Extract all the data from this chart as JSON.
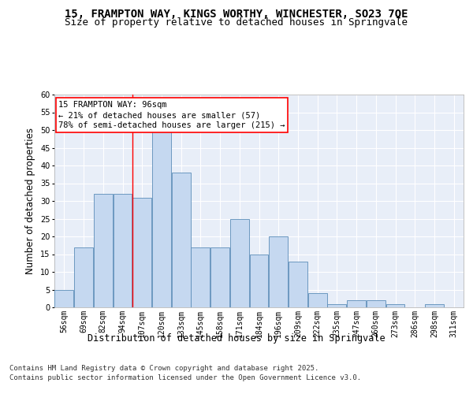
{
  "title_line1": "15, FRAMPTON WAY, KINGS WORTHY, WINCHESTER, SO23 7QE",
  "title_line2": "Size of property relative to detached houses in Springvale",
  "xlabel": "Distribution of detached houses by size in Springvale",
  "ylabel": "Number of detached properties",
  "bar_labels": [
    "56sqm",
    "69sqm",
    "82sqm",
    "94sqm",
    "107sqm",
    "120sqm",
    "133sqm",
    "145sqm",
    "158sqm",
    "171sqm",
    "184sqm",
    "196sqm",
    "209sqm",
    "222sqm",
    "235sqm",
    "247sqm",
    "260sqm",
    "273sqm",
    "286sqm",
    "298sqm",
    "311sqm"
  ],
  "bar_values": [
    5,
    17,
    32,
    32,
    31,
    50,
    38,
    17,
    17,
    25,
    15,
    20,
    13,
    4,
    1,
    2,
    2,
    1,
    0,
    1,
    0
  ],
  "bar_color": "#c5d8f0",
  "bar_edge_color": "#5b8db8",
  "annotation_text": "15 FRAMPTON WAY: 96sqm\n← 21% of detached houses are smaller (57)\n78% of semi-detached houses are larger (215) →",
  "vline_x": 3.5,
  "ylim": [
    0,
    60
  ],
  "yticks": [
    0,
    5,
    10,
    15,
    20,
    25,
    30,
    35,
    40,
    45,
    50,
    55,
    60
  ],
  "background_color": "#e8eef8",
  "grid_color": "#ffffff",
  "footer_line1": "Contains HM Land Registry data © Crown copyright and database right 2025.",
  "footer_line2": "Contains public sector information licensed under the Open Government Licence v3.0.",
  "title_fontsize": 10,
  "subtitle_fontsize": 9,
  "axis_label_fontsize": 8.5,
  "tick_fontsize": 7,
  "annotation_fontsize": 7.5,
  "footer_fontsize": 6.5
}
